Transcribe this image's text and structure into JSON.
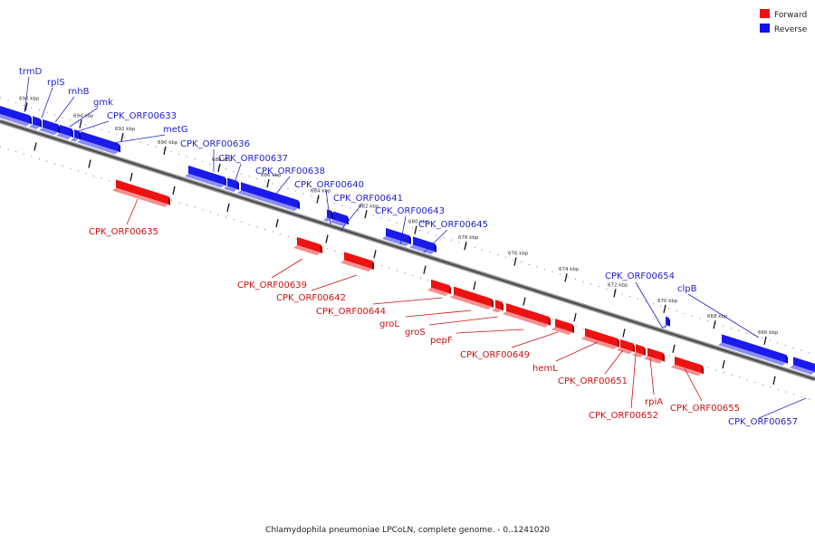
{
  "legend": {
    "forward": {
      "label": "Forward",
      "color": "#ee1111"
    },
    "reverse": {
      "label": "Reverse",
      "color": "#1111ee"
    }
  },
  "caption": "Chlamydophila pneumoniae LPCoLN, complete genome. - 0..1241020",
  "ticks": [
    "696 kbp",
    "694 kbp",
    "692 kbp",
    "690 kbp",
    "688 kbp",
    "686 kbp",
    "684 kbp",
    "682 kbp",
    "680 kbp",
    "678 kbp",
    "676 kbp",
    "674 kbp",
    "672 kbp",
    "670 kbp",
    "668 kbp",
    "666 kbp"
  ],
  "reverse_genes": [
    "trmD",
    "rplS",
    "rnhB",
    "gmk",
    "CPK_ORF00633",
    "metG",
    "CPK_ORF00636",
    "CPK_ORF00637",
    "CPK_ORF00638",
    "CPK_ORF00640",
    "CPK_ORF00641",
    "CPK_ORF00643",
    "CPK_ORF00645",
    "CPK_ORF00654",
    "clpB",
    "CPK_ORF00657"
  ],
  "forward_genes": [
    "CPK_ORF00635",
    "CPK_ORF00639",
    "CPK_ORF00642",
    "CPK_ORF00644",
    "groL",
    "groS",
    "pepF",
    "CPK_ORF00649",
    "hemL",
    "CPK_ORF00651",
    "CPK_ORF00652",
    "rpiA",
    "CPK_ORF00655"
  ]
}
